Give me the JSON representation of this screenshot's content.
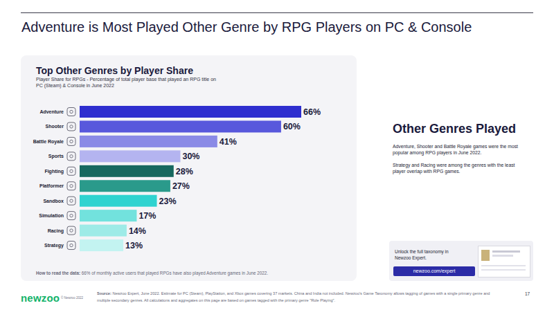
{
  "page": {
    "title": "Adventure is Most Played Other Genre by RPG Players on PC & Console",
    "side_heading": "Other Genres Played",
    "side_paragraphs": [
      "Adventure, Shooter and Battle Royale games were the most popular among RPG players in June 2022.",
      "Strategy and Racing were among the genres with the least player overlap with RPG games."
    ],
    "promo_text": "Unlock the full taxonomy in Newzoo Expert.",
    "promo_button": "newzoo.com/expert",
    "logo": "newzoo",
    "copyright": "© Newzoo 2022",
    "source_label": "Source:",
    "source": "Newzoo Expert, June 2022. Estimate for PC (Steam), PlayStation, and Xbox games covering 37 markets. China and India not included. Newzoo's Game Taxonomy allows tagging of games with a single primary genre and multiple secondary genres. All calculations and aggregates on this page are based on games tagged with the primary genre \"Role Playing\".",
    "page_number": "17"
  },
  "chart_data": {
    "type": "bar",
    "orientation": "horizontal",
    "title": "Top Other Genres by Player Share",
    "subtitle": "Player Share for RPGs - Percentage of total player base that played an RPG title on PC (Steam) & Console in June 2022",
    "categories": [
      "Adventure",
      "Shooter",
      "Battle Royale",
      "Sports",
      "Fighting",
      "Platformer",
      "Sandbox",
      "Simulation",
      "Racing",
      "Strategy"
    ],
    "values": [
      66,
      60,
      41,
      30,
      28,
      27,
      23,
      17,
      14,
      13
    ],
    "value_labels": [
      "66%",
      "60%",
      "41%",
      "30%",
      "28%",
      "27%",
      "23%",
      "17%",
      "14%",
      "13%"
    ],
    "colors": [
      "#2e2ecf",
      "#5858dc",
      "#8a8ae6",
      "#b4b4f0",
      "#17685f",
      "#2a9a8b",
      "#2fd3d0",
      "#72e2dd",
      "#9eebe7",
      "#c3f3f1"
    ],
    "xlim": [
      0,
      66
    ],
    "data_labels": true,
    "tick_labels": "y",
    "annotations": [
      "How to read the data:",
      "66% of monthly active users that played RPGs have also played Adventure games in June 2022."
    ]
  }
}
